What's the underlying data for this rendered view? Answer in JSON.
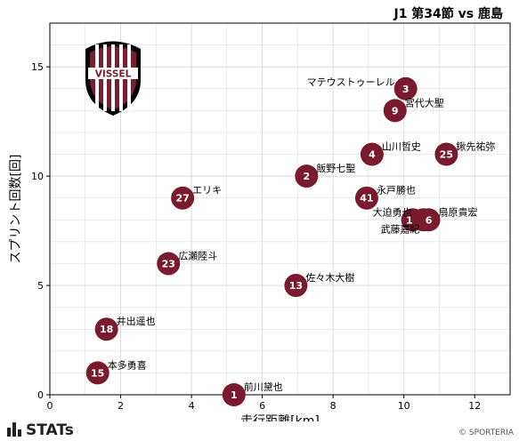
{
  "header": {
    "title": "J1 第34節 vs 鹿島"
  },
  "footer": {
    "stats_logo": "STATs",
    "copyright": "© SPORTERIA"
  },
  "logo": {
    "text": "VISSEL",
    "color": "#7a1e32"
  },
  "colors": {
    "marker": "#7a1a2e",
    "marker_text": "#ffffff",
    "grid": "#d8d8d8"
  },
  "chart_data": {
    "type": "scatter",
    "xlabel": "走行距離[km]",
    "ylabel": "スプリント回数[回]",
    "xlim": [
      0,
      13
    ],
    "ylim": [
      0,
      17
    ],
    "x_ticks": [
      0,
      2,
      4,
      6,
      8,
      10,
      12
    ],
    "y_ticks": [
      0,
      5,
      10,
      15
    ],
    "grid": true,
    "points": [
      {
        "number": "3",
        "name": "マテウストゥーレル",
        "x": 10.05,
        "y": 14,
        "label_pos": "left"
      },
      {
        "number": "9",
        "name": "宮代大聖",
        "x": 9.75,
        "y": 13,
        "label_pos": "upper-right"
      },
      {
        "number": "4",
        "name": "山川哲史",
        "x": 9.1,
        "y": 11,
        "label_pos": "upper-right"
      },
      {
        "number": "25",
        "name": "鍬先祐弥",
        "x": 11.2,
        "y": 11,
        "label_pos": "upper-right"
      },
      {
        "number": "2",
        "name": "飯野七聖",
        "x": 7.25,
        "y": 10,
        "label_pos": "upper-right"
      },
      {
        "number": "41",
        "name": "永戸勝也",
        "x": 8.95,
        "y": 9,
        "label_pos": "upper-right"
      },
      {
        "number": "27",
        "name": "エリキ",
        "x": 3.75,
        "y": 9,
        "label_pos": "upper-right"
      },
      {
        "number": "10",
        "name": "大迫勇也",
        "x": 10.25,
        "y": 8,
        "label_pos": "upper-left"
      },
      {
        "number": "16",
        "name": "武藤嘉紀",
        "x": 10.55,
        "y": 8,
        "label_pos": "lower-left"
      },
      {
        "number": "6",
        "name": "扇原貴宏",
        "x": 10.7,
        "y": 8,
        "label_pos": "upper-right"
      },
      {
        "number": "23",
        "name": "広瀬陸斗",
        "x": 3.35,
        "y": 6,
        "label_pos": "upper-right"
      },
      {
        "number": "13",
        "name": "佐々木大樹",
        "x": 6.95,
        "y": 5,
        "label_pos": "upper-right"
      },
      {
        "number": "18",
        "name": "井出遥也",
        "x": 1.6,
        "y": 3,
        "label_pos": "upper-right"
      },
      {
        "number": "15",
        "name": "本多勇喜",
        "x": 1.35,
        "y": 1,
        "label_pos": "upper-right"
      },
      {
        "number": "1",
        "name": "前川黛也",
        "x": 5.2,
        "y": 0,
        "label_pos": "upper-right"
      }
    ]
  }
}
